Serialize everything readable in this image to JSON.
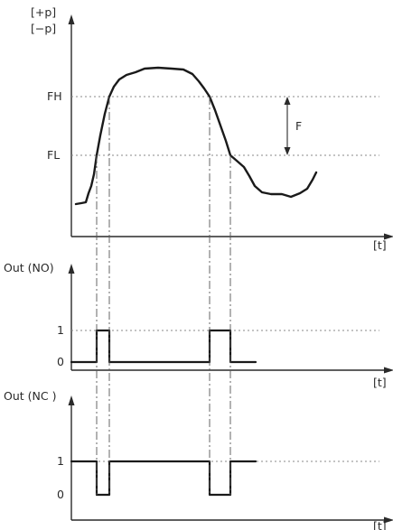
{
  "pressure_axis": {
    "label_plus": "[+p]",
    "label_minus": "[−p]",
    "time_label": "[t]"
  },
  "thresholds": {
    "fh": "FH",
    "fl": "FL",
    "hysteresis": "F"
  },
  "no_output": {
    "title": "Out (NO)",
    "level_high": "1",
    "level_low": "0",
    "time_label": "[t]"
  },
  "nc_output": {
    "title": "Out (NC )",
    "level_high": "1",
    "level_low": "0",
    "time_label": "[t]"
  }
}
